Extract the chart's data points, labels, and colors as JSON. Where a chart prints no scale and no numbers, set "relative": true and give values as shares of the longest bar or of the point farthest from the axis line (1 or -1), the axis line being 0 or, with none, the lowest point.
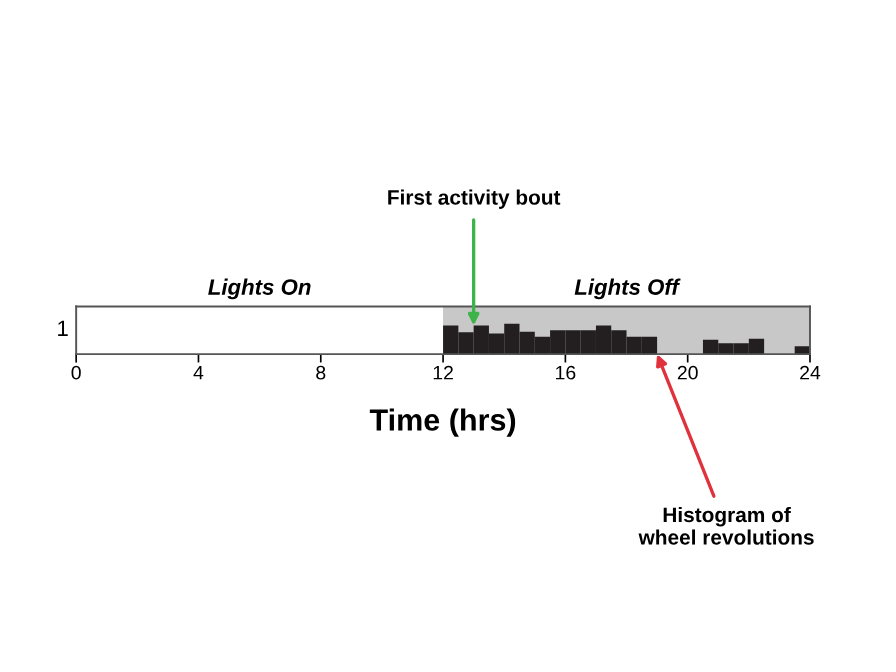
{
  "chart_data": {
    "type": "bar",
    "relative": true,
    "xlabel": "Time (hrs)",
    "ylabel": "1",
    "x": [
      12.25,
      12.75,
      13.25,
      13.75,
      14.25,
      14.75,
      15.25,
      15.75,
      16.25,
      16.75,
      17.25,
      17.75,
      18.25,
      18.75,
      19.25,
      19.75,
      20.25,
      20.75,
      21.25,
      21.75,
      22.25,
      22.75,
      23.25,
      23.75
    ],
    "values": [
      0.94,
      0.72,
      0.94,
      0.68,
      1,
      0.74,
      0.57,
      0.79,
      0.79,
      0.79,
      0.94,
      0.79,
      0.57,
      0.57,
      0,
      0,
      0,
      0.47,
      0.36,
      0.36,
      0.51,
      0,
      0,
      0.26
    ],
    "color": "#231f20",
    "xlim": [
      0,
      24
    ],
    "xticks": [
      0,
      4,
      8,
      12,
      16,
      20,
      24
    ],
    "bands": [
      {
        "axis": "x",
        "from": 12,
        "to": 24,
        "label": "Lights Off",
        "color": "#c8c8c8"
      }
    ],
    "annotations": [
      "Lights On",
      {
        "text": "First activity bout",
        "x": 13,
        "y": 0.94
      },
      {
        "text": "Histogram of\nwheel revolutions",
        "x": 19,
        "y": 0
      }
    ]
  }
}
